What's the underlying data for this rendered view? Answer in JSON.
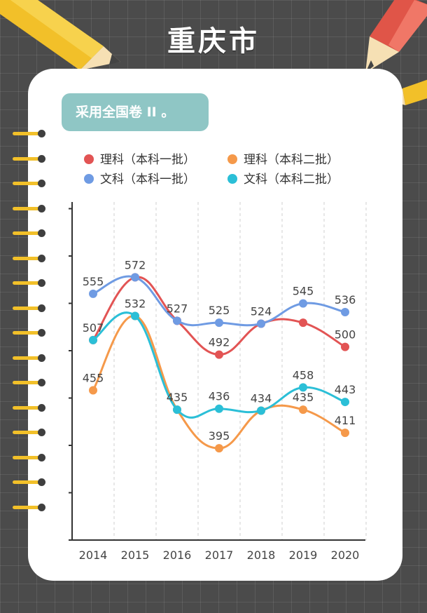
{
  "header": {
    "title": "重庆市"
  },
  "note": {
    "text": "采用全国卷 II 。"
  },
  "colors": {
    "background": "#4b4b4b",
    "card": "#ffffff",
    "note_bg": "#8fc6c5",
    "ring_bar": "#f2c029"
  },
  "chart_data": {
    "type": "line",
    "x": [
      "2014",
      "2015",
      "2016",
      "2017",
      "2018",
      "2019",
      "2020"
    ],
    "series": [
      {
        "name": "理科（本科一批）",
        "color": "#e25454",
        "values": [
          507,
          572,
          527,
          492,
          524,
          525,
          500
        ],
        "labels": [
          false,
          false,
          false,
          true,
          false,
          false,
          true
        ]
      },
      {
        "name": "理科（本科二批）",
        "color": "#f5994a",
        "values": [
          455,
          532,
          435,
          395,
          434,
          435,
          411
        ],
        "labels": [
          true,
          false,
          false,
          true,
          false,
          true,
          true
        ]
      },
      {
        "name": "文科（本科一批）",
        "color": "#6f9be3",
        "values": [
          555,
          572,
          527,
          525,
          524,
          545,
          536
        ],
        "labels": [
          true,
          true,
          true,
          true,
          true,
          true,
          true
        ]
      },
      {
        "name": "文科（本科二批）",
        "color": "#2bbfd7",
        "values": [
          507,
          532,
          435,
          436,
          434,
          458,
          443
        ],
        "labels": [
          true,
          true,
          true,
          true,
          true,
          true,
          true
        ]
      }
    ],
    "ylim": [
      300,
      650
    ],
    "grid": "vertical dashed",
    "legend": "top"
  }
}
